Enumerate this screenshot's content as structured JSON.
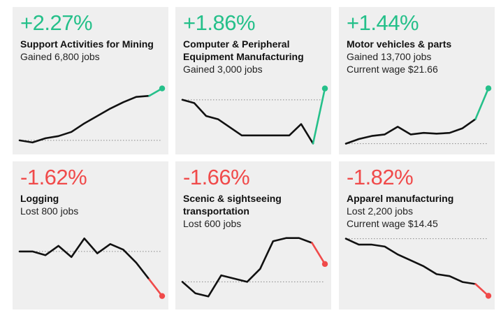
{
  "colors": {
    "gain": "#25c08a",
    "loss": "#f04a4a",
    "line": "#111111",
    "panel_bg": "#efefef",
    "baseline": "#888888"
  },
  "chart_data": [
    {
      "type": "line",
      "pct": "+2.27%",
      "title": "Support Activities for Mining",
      "lines": [
        "Gained 6,800 jobs"
      ],
      "direction": "gain",
      "values": [
        0,
        -1,
        1,
        2,
        4,
        8,
        11.5,
        15,
        18,
        20.5,
        21,
        24.5
      ],
      "highlight_from": 10,
      "baseline": 0,
      "ylim": [
        -3,
        26
      ]
    },
    {
      "type": "line",
      "pct": "+1.86%",
      "title": "Computer & Peripheral Equipment Manufacturing",
      "lines": [
        "Gained 3,000 jobs"
      ],
      "direction": "gain",
      "values": [
        27,
        25,
        17,
        15,
        10,
        5,
        5,
        5,
        5,
        5,
        12,
        0,
        34
      ],
      "highlight_from": 11,
      "baseline": 27,
      "ylim": [
        -2,
        36
      ]
    },
    {
      "type": "line",
      "pct": "+1.44%",
      "title": "Motor vehicles & parts",
      "lines": [
        "Gained 13,700 jobs",
        "Current wage $21.66"
      ],
      "direction": "gain",
      "values": [
        0,
        3,
        5,
        6,
        11,
        6,
        7,
        6.5,
        7,
        10,
        16,
        36
      ],
      "highlight_from": 10,
      "baseline": 0,
      "ylim": [
        -2,
        38
      ]
    },
    {
      "type": "line",
      "pct": "-1.62%",
      "title": "Logging",
      "lines": [
        "Lost 800 jobs"
      ],
      "direction": "loss",
      "values": [
        20,
        20,
        18,
        23,
        17,
        27,
        19,
        24,
        21,
        14,
        5,
        -4
      ],
      "highlight_from": 10,
      "baseline": 20,
      "ylim": [
        -6,
        29
      ]
    },
    {
      "type": "line",
      "pct": "-1.66%",
      "title": "Scenic & sightseeing transportation",
      "lines": [
        "Lost 600 jobs"
      ],
      "direction": "loss",
      "values": [
        0,
        -7,
        -9,
        4,
        2,
        0,
        8,
        25,
        27,
        27,
        24,
        11
      ],
      "highlight_from": 10,
      "baseline": 0,
      "ylim": [
        -11,
        29
      ]
    },
    {
      "type": "line",
      "pct": "-1.82%",
      "title": "Apparel manufacturing",
      "lines": [
        "Lost 2,200 jobs",
        "Current wage $14.45"
      ],
      "direction": "loss",
      "values": [
        0,
        -3,
        -3,
        -4,
        -8,
        -11,
        -14,
        -18,
        -19,
        -22,
        -23,
        -29
      ],
      "highlight_from": 10,
      "baseline": 0,
      "ylim": [
        -31,
        2
      ]
    }
  ]
}
